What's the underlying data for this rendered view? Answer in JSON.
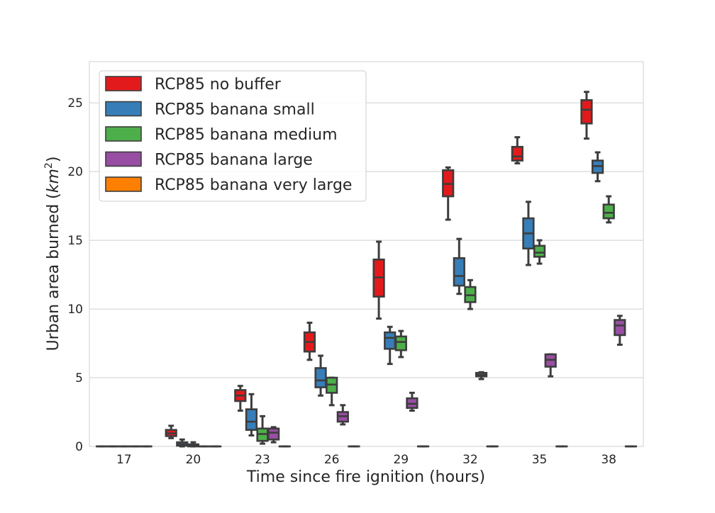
{
  "chart_data": {
    "type": "box",
    "xlabel": "Time since fire ignition (hours)",
    "ylabel_text": "Urban area burned (",
    "ylabel_unit": "km",
    "ylabel_exp": "2",
    "ylabel_close": ")",
    "ylim": [
      0,
      28
    ],
    "yticks": [
      0,
      5,
      10,
      15,
      20,
      25
    ],
    "grid": "horizontal",
    "legend_position": "top-left",
    "categories": [
      "17",
      "20",
      "23",
      "26",
      "29",
      "32",
      "35",
      "38"
    ],
    "series": [
      {
        "name": "RCP85 no buffer",
        "color": "#e31a1c",
        "boxes": [
          {
            "min": 0,
            "q1": 0,
            "median": 0,
            "q3": 0,
            "max": 0
          },
          {
            "min": 0.6,
            "q1": 0.75,
            "median": 0.95,
            "q3": 1.2,
            "max": 1.5
          },
          {
            "min": 2.6,
            "q1": 3.3,
            "median": 3.7,
            "q3": 4.1,
            "max": 4.4
          },
          {
            "min": 6.3,
            "q1": 6.9,
            "median": 7.6,
            "q3": 8.3,
            "max": 9.0
          },
          {
            "min": 9.3,
            "q1": 10.9,
            "median": 12.3,
            "q3": 13.6,
            "max": 14.9
          },
          {
            "min": 16.5,
            "q1": 18.2,
            "median": 19.1,
            "q3": 20.1,
            "max": 20.3
          },
          {
            "min": 20.6,
            "q1": 20.8,
            "median": 21.1,
            "q3": 21.8,
            "max": 22.5
          },
          {
            "min": 22.4,
            "q1": 23.5,
            "median": 24.5,
            "q3": 25.2,
            "max": 25.8
          }
        ]
      },
      {
        "name": "RCP85 banana small",
        "color": "#377eb8",
        "boxes": [
          {
            "min": 0,
            "q1": 0,
            "median": 0,
            "q3": 0,
            "max": 0
          },
          {
            "min": 0.0,
            "q1": 0.05,
            "median": 0.15,
            "q3": 0.3,
            "max": 0.5
          },
          {
            "min": 0.8,
            "q1": 1.2,
            "median": 1.8,
            "q3": 2.7,
            "max": 3.8
          },
          {
            "min": 3.7,
            "q1": 4.3,
            "median": 4.8,
            "q3": 5.7,
            "max": 6.6
          },
          {
            "min": 6.0,
            "q1": 7.1,
            "median": 7.9,
            "q3": 8.3,
            "max": 8.7
          },
          {
            "min": 11.1,
            "q1": 11.7,
            "median": 12.4,
            "q3": 13.7,
            "max": 15.1
          },
          {
            "min": 13.2,
            "q1": 14.4,
            "median": 15.5,
            "q3": 16.6,
            "max": 17.8
          },
          {
            "min": 19.3,
            "q1": 19.9,
            "median": 20.4,
            "q3": 20.8,
            "max": 21.4
          }
        ]
      },
      {
        "name": "RCP85 banana medium",
        "color": "#4daf4a",
        "boxes": [
          {
            "min": 0,
            "q1": 0,
            "median": 0,
            "q3": 0,
            "max": 0
          },
          {
            "min": 0.0,
            "q1": 0.0,
            "median": 0.05,
            "q3": 0.15,
            "max": 0.3
          },
          {
            "min": 0.2,
            "q1": 0.4,
            "median": 0.9,
            "q3": 1.3,
            "max": 2.2
          },
          {
            "min": 3.0,
            "q1": 3.9,
            "median": 4.5,
            "q3": 5.0,
            "max": 5.0
          },
          {
            "min": 6.5,
            "q1": 7.0,
            "median": 7.6,
            "q3": 8.0,
            "max": 8.4
          },
          {
            "min": 10.0,
            "q1": 10.5,
            "median": 11.0,
            "q3": 11.6,
            "max": 12.1
          },
          {
            "min": 13.3,
            "q1": 13.8,
            "median": 14.1,
            "q3": 14.6,
            "max": 15.0
          },
          {
            "min": 16.3,
            "q1": 16.6,
            "median": 17.0,
            "q3": 17.6,
            "max": 18.2
          }
        ]
      },
      {
        "name": "RCP85 banana large",
        "color": "#984ea3",
        "boxes": [
          {
            "min": 0,
            "q1": 0,
            "median": 0,
            "q3": 0,
            "max": 0
          },
          {
            "min": 0,
            "q1": 0,
            "median": 0,
            "q3": 0,
            "max": 0
          },
          {
            "min": 0.3,
            "q1": 0.5,
            "median": 1.0,
            "q3": 1.3,
            "max": 1.4
          },
          {
            "min": 1.6,
            "q1": 1.8,
            "median": 2.2,
            "q3": 2.5,
            "max": 3.0
          },
          {
            "min": 2.6,
            "q1": 2.8,
            "median": 3.1,
            "q3": 3.5,
            "max": 3.9
          },
          {
            "min": 4.9,
            "q1": 5.1,
            "median": 5.2,
            "q3": 5.35,
            "max": 5.4
          },
          {
            "min": 5.1,
            "q1": 5.8,
            "median": 6.3,
            "q3": 6.7,
            "max": 6.7
          },
          {
            "min": 7.4,
            "q1": 8.1,
            "median": 8.8,
            "q3": 9.2,
            "max": 9.5
          }
        ]
      },
      {
        "name": "RCP85 banana very large",
        "color": "#ff7f00",
        "boxes": [
          {
            "min": 0,
            "q1": 0,
            "median": 0,
            "q3": 0,
            "max": 0
          },
          {
            "min": 0,
            "q1": 0,
            "median": 0,
            "q3": 0,
            "max": 0
          },
          {
            "min": 0,
            "q1": 0,
            "median": 0,
            "q3": 0,
            "max": 0
          },
          {
            "min": 0,
            "q1": 0,
            "median": 0,
            "q3": 0,
            "max": 0
          },
          {
            "min": 0,
            "q1": 0,
            "median": 0,
            "q3": 0,
            "max": 0
          },
          {
            "min": 0,
            "q1": 0,
            "median": 0,
            "q3": 0,
            "max": 0
          },
          {
            "min": 0,
            "q1": 0,
            "median": 0,
            "q3": 0,
            "max": 0
          },
          {
            "min": 0,
            "q1": 0,
            "median": 0,
            "q3": 0,
            "max": 0
          }
        ]
      }
    ]
  }
}
